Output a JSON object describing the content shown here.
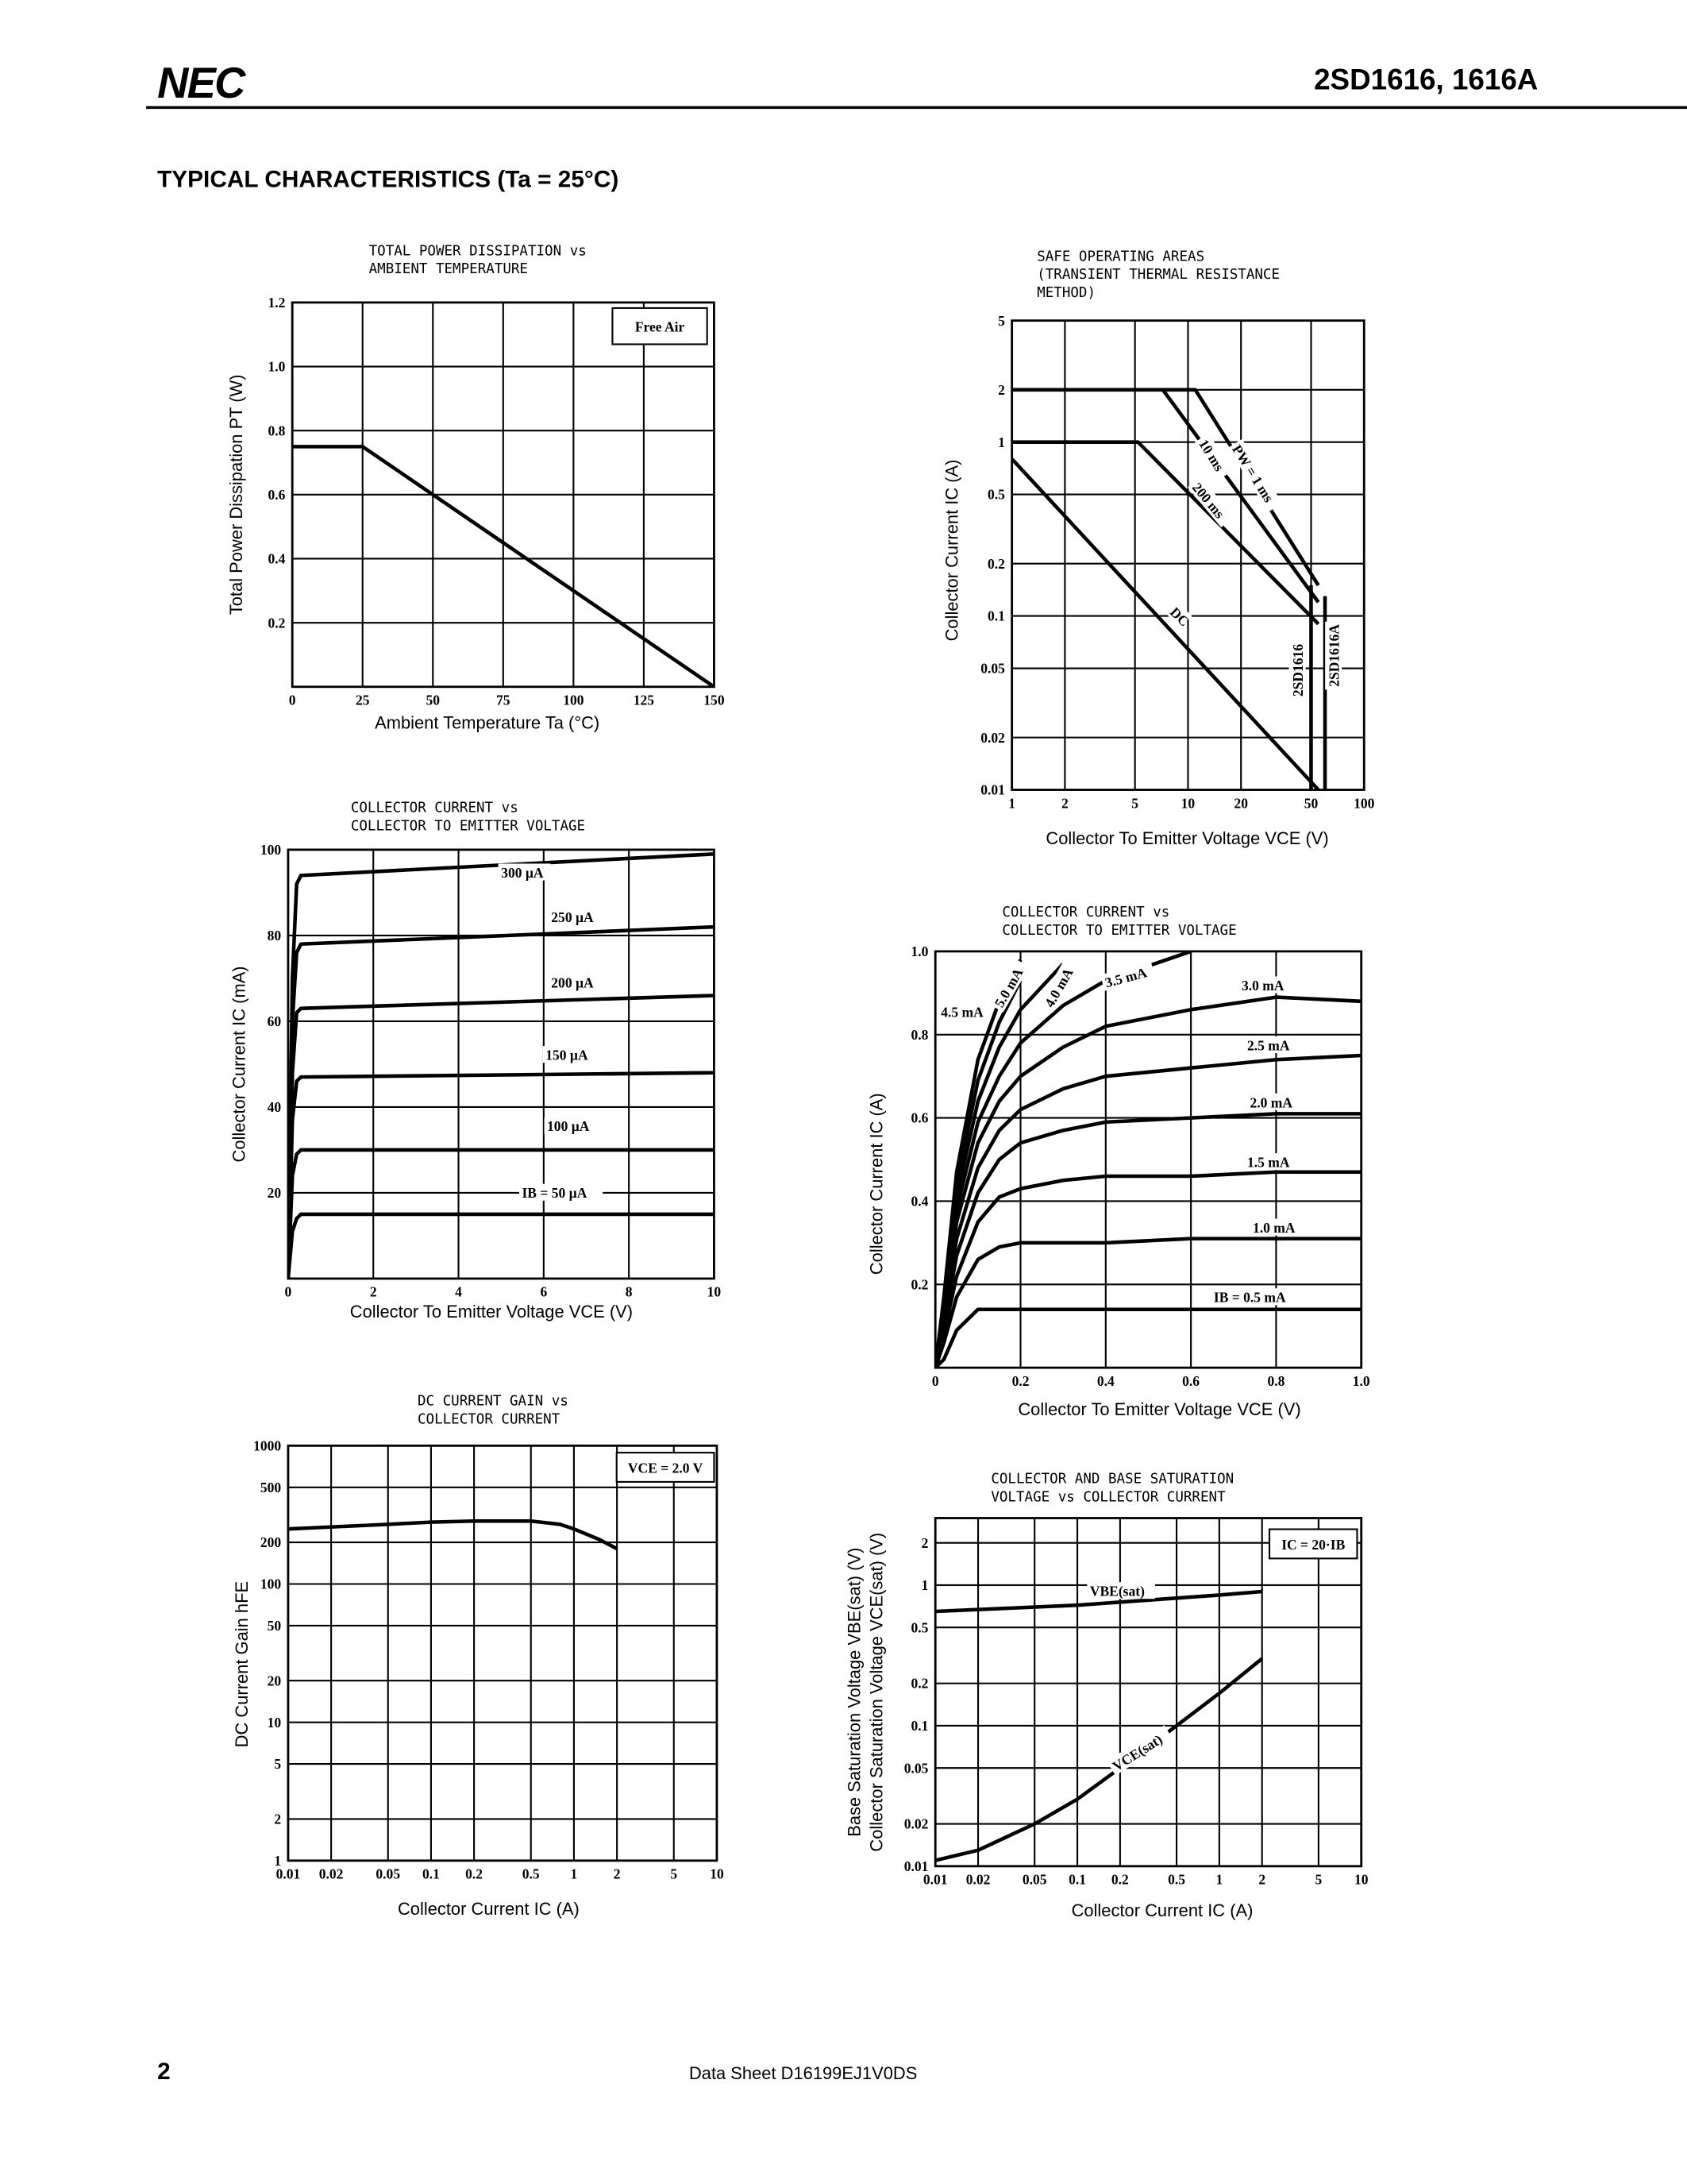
{
  "header": {
    "logo": "NEC",
    "part": "2SD1616, 1616A"
  },
  "section_title": "TYPICAL CHARACTERISTICS (Ta = 25°C)",
  "footer": {
    "page": "2",
    "doc": "Data Sheet  D16199EJ1V0DS"
  },
  "chart_data": [
    {
      "type": "line",
      "title": [
        "TOTAL POWER DISSIPATION vs",
        "AMBIENT TEMPERATURE"
      ],
      "xlabel": "Ambient Temperature  Ta (°C)",
      "ylabel": "Total Power Dissipation  PT (W)",
      "annotation": "Free Air",
      "grid": true,
      "x": [
        0,
        25,
        150
      ],
      "series": [
        {
          "color": "#000000",
          "values": [
            0.75,
            0.75,
            0
          ]
        }
      ],
      "xlim": [
        0,
        150
      ],
      "xticks": [
        0,
        25,
        50,
        75,
        100,
        125,
        150
      ],
      "ylim": [
        0,
        1.2
      ],
      "yticks": [
        0.2,
        0.4,
        0.6,
        0.8,
        {
          "value": 1,
          "label": "1.0"
        },
        1.2
      ]
    },
    {
      "type": "line",
      "title": [
        "SAFE OPERATING AREAS",
        "(TRANSIENT THERMAL RESISTANCE",
        "METHOD)"
      ],
      "xlabel": "Collector To Emitter Voltage  VCE (V)",
      "ylabel": "Collector Current  IC (A)",
      "grid": true,
      "xscale": "log",
      "yscale": "log",
      "series": [
        {
          "name": "PW = 1 ms",
          "color": "#000000",
          "x": [
            1,
            11,
            55
          ],
          "values": [
            2,
            2,
            0.15
          ]
        },
        {
          "name": "10 ms",
          "color": "#000000",
          "x": [
            7.2,
            55
          ],
          "values": [
            2,
            0.12
          ]
        },
        {
          "name": "200 ms",
          "color": "#000000",
          "x": [
            1,
            5.2,
            55
          ],
          "values": [
            1,
            1,
            0.09
          ]
        },
        {
          "name": "DC",
          "color": "#000000",
          "x": [
            1,
            55
          ],
          "values": [
            0.8,
            0.01
          ]
        },
        {
          "name": "2SD1616",
          "color": "#000000",
          "x": [
            50,
            50
          ],
          "values": [
            0.15,
            0.01
          ]
        },
        {
          "name": "2SD1616A",
          "color": "#000000",
          "x": [
            60,
            60
          ],
          "values": [
            0.13,
            0.01
          ]
        }
      ],
      "xlim": [
        1,
        100
      ],
      "xticks": [
        1,
        2,
        5,
        10,
        20,
        50,
        100
      ],
      "ylim": [
        0.01,
        5
      ],
      "yticks": [
        0.01,
        0.02,
        0.05,
        0.1,
        0.2,
        0.5,
        1,
        2,
        5
      ]
    },
    {
      "type": "line",
      "title": [
        "COLLECTOR CURRENT vs",
        "COLLECTOR TO EMITTER VOLTAGE"
      ],
      "xlabel": "Collector To Emitter Voltage  VCE (V)",
      "ylabel": "Collector Current  IC (mA)",
      "grid": true,
      "x": [
        0,
        0.1,
        0.2,
        0.3,
        10
      ],
      "series": [
        {
          "name": "300 µA",
          "color": "#000000",
          "values": [
            0,
            70,
            92,
            94,
            99
          ]
        },
        {
          "name": "250 µA",
          "color": "#000000",
          "values": [
            0,
            60,
            76,
            78,
            82
          ]
        },
        {
          "name": "200 µA",
          "color": "#000000",
          "values": [
            0,
            48,
            62,
            63,
            66
          ]
        },
        {
          "name": "150 µA",
          "color": "#000000",
          "values": [
            0,
            37,
            46,
            47,
            48
          ]
        },
        {
          "name": "100 µA",
          "color": "#000000",
          "values": [
            0,
            24,
            29,
            30,
            30
          ]
        },
        {
          "name": "IB = 50 µA",
          "color": "#000000",
          "values": [
            0,
            11,
            14,
            15,
            15
          ]
        }
      ],
      "xlim": [
        0,
        10
      ],
      "xticks": [
        0,
        2,
        4,
        6,
        8,
        10
      ],
      "ylim": [
        0,
        100
      ],
      "yticks": [
        20,
        40,
        60,
        80,
        100
      ]
    },
    {
      "type": "line",
      "title": [
        "COLLECTOR CURRENT vs",
        "COLLECTOR TO EMITTER VOLTAGE"
      ],
      "xlabel": "Collector To Emitter Voltage  VCE (V)",
      "ylabel": "Collector Current  IC (A)",
      "grid": true,
      "x": [
        0,
        0.02,
        0.05,
        0.1,
        0.15,
        0.2,
        0.3,
        0.4,
        0.6,
        0.8,
        1
      ],
      "series": [
        {
          "name": "IB = 0.5 mA",
          "color": "#000000",
          "values": [
            0,
            0.02,
            0.09,
            0.14,
            0.14,
            0.14,
            0.14,
            0.14,
            0.14,
            0.14,
            0.14
          ]
        },
        {
          "name": "1.0 mA",
          "color": "#000000",
          "values": [
            0,
            0.06,
            0.17,
            0.26,
            0.29,
            0.3,
            0.3,
            0.3,
            0.31,
            0.31,
            0.31
          ]
        },
        {
          "name": "1.5 mA",
          "color": "#000000",
          "values": [
            0,
            0.08,
            0.22,
            0.35,
            0.41,
            0.43,
            0.45,
            0.46,
            0.46,
            0.47,
            0.47
          ]
        },
        {
          "name": "2.0 mA",
          "color": "#000000",
          "values": [
            0,
            0.1,
            0.27,
            0.42,
            0.5,
            0.54,
            0.57,
            0.59,
            0.6,
            0.61,
            0.61
          ]
        },
        {
          "name": "2.5 mA",
          "color": "#000000",
          "values": [
            0,
            0.12,
            0.31,
            0.48,
            0.57,
            0.62,
            0.67,
            0.7,
            0.72,
            0.74,
            0.75
          ]
        },
        {
          "name": "3.0 mA",
          "color": "#000000",
          "values": [
            0,
            0.13,
            0.35,
            0.54,
            0.64,
            0.7,
            0.77,
            0.82,
            0.86,
            0.89,
            0.88
          ]
        },
        {
          "name": "3.5 mA",
          "color": "#000000",
          "values": [
            0,
            0.14,
            0.38,
            0.59,
            0.7,
            0.78,
            0.87,
            0.93,
            1,
            null,
            null
          ]
        },
        {
          "name": "4.0 mA",
          "color": "#000000",
          "values": [
            0,
            0.15,
            0.41,
            0.64,
            0.77,
            0.86,
            0.97,
            null,
            null,
            null,
            null
          ]
        },
        {
          "name": "4.5 mA",
          "color": "#000000",
          "values": [
            0,
            0.16,
            0.44,
            0.69,
            0.83,
            0.93,
            null,
            null,
            null,
            null,
            null
          ]
        },
        {
          "name": "5.0 mA",
          "color": "#000000",
          "values": [
            0,
            0.17,
            0.47,
            0.74,
            0.88,
            0.98,
            null,
            null,
            null,
            null,
            null
          ]
        }
      ],
      "xlim": [
        0,
        1
      ],
      "xticks": [
        0,
        0.2,
        0.4,
        0.6,
        0.8,
        {
          "value": 1,
          "label": "1.0"
        }
      ],
      "ylim": [
        0,
        1
      ],
      "yticks": [
        0.2,
        0.4,
        0.6,
        0.8,
        {
          "value": 1,
          "label": "1.0"
        }
      ]
    },
    {
      "type": "line",
      "title": [
        "DC CURRENT GAIN vs",
        "COLLECTOR CURRENT"
      ],
      "xlabel": "Collector Current  IC (A)",
      "ylabel": "DC Current Gain  hFE",
      "annotation": "VCE = 2.0 V",
      "grid": true,
      "xscale": "log",
      "yscale": "log",
      "series": [
        {
          "color": "#000000",
          "x": [
            0.01,
            0.05,
            0.1,
            0.2,
            0.5,
            0.8,
            1,
            1.5,
            2
          ],
          "values": [
            250,
            270,
            280,
            285,
            285,
            270,
            250,
            210,
            180
          ]
        }
      ],
      "xlim": [
        0.01,
        10
      ],
      "xticks": [
        0.01,
        0.02,
        0.05,
        0.1,
        0.2,
        0.5,
        1,
        2,
        5,
        10
      ],
      "ylim": [
        1,
        1000
      ],
      "yticks": [
        1,
        2,
        5,
        10,
        20,
        50,
        100,
        200,
        500,
        1000
      ]
    },
    {
      "type": "line",
      "title": [
        "COLLECTOR AND BASE SATURATION",
        "VOLTAGE vs COLLECTOR CURRENT"
      ],
      "xlabel": "Collector Current  IC (A)",
      "ylabel": [
        "Base Saturation Voltage  VBE(sat) (V)",
        "Collector Saturation Voltage  VCE(sat) (V)"
      ],
      "annotation": "IC = 20·IB",
      "grid": true,
      "xscale": "log",
      "yscale": "log",
      "series": [
        {
          "name": "VBE(sat)",
          "color": "#000000",
          "x": [
            0.01,
            0.1,
            1,
            2
          ],
          "values": [
            0.65,
            0.72,
            0.85,
            0.9
          ]
        },
        {
          "name": "VCE(sat)",
          "color": "#000000",
          "x": [
            0.01,
            0.02,
            0.05,
            0.1,
            0.2,
            0.5,
            1,
            2
          ],
          "values": [
            0.011,
            0.013,
            0.02,
            0.03,
            0.05,
            0.1,
            0.17,
            0.3
          ]
        }
      ],
      "xlim": [
        0.01,
        10
      ],
      "xticks": [
        0.01,
        0.02,
        0.05,
        0.1,
        0.2,
        0.5,
        1,
        2,
        5,
        10
      ],
      "ylim": [
        0.01,
        3
      ],
      "yticks": [
        0.01,
        0.02,
        0.05,
        0.1,
        0.2,
        0.5,
        1,
        2
      ]
    }
  ]
}
